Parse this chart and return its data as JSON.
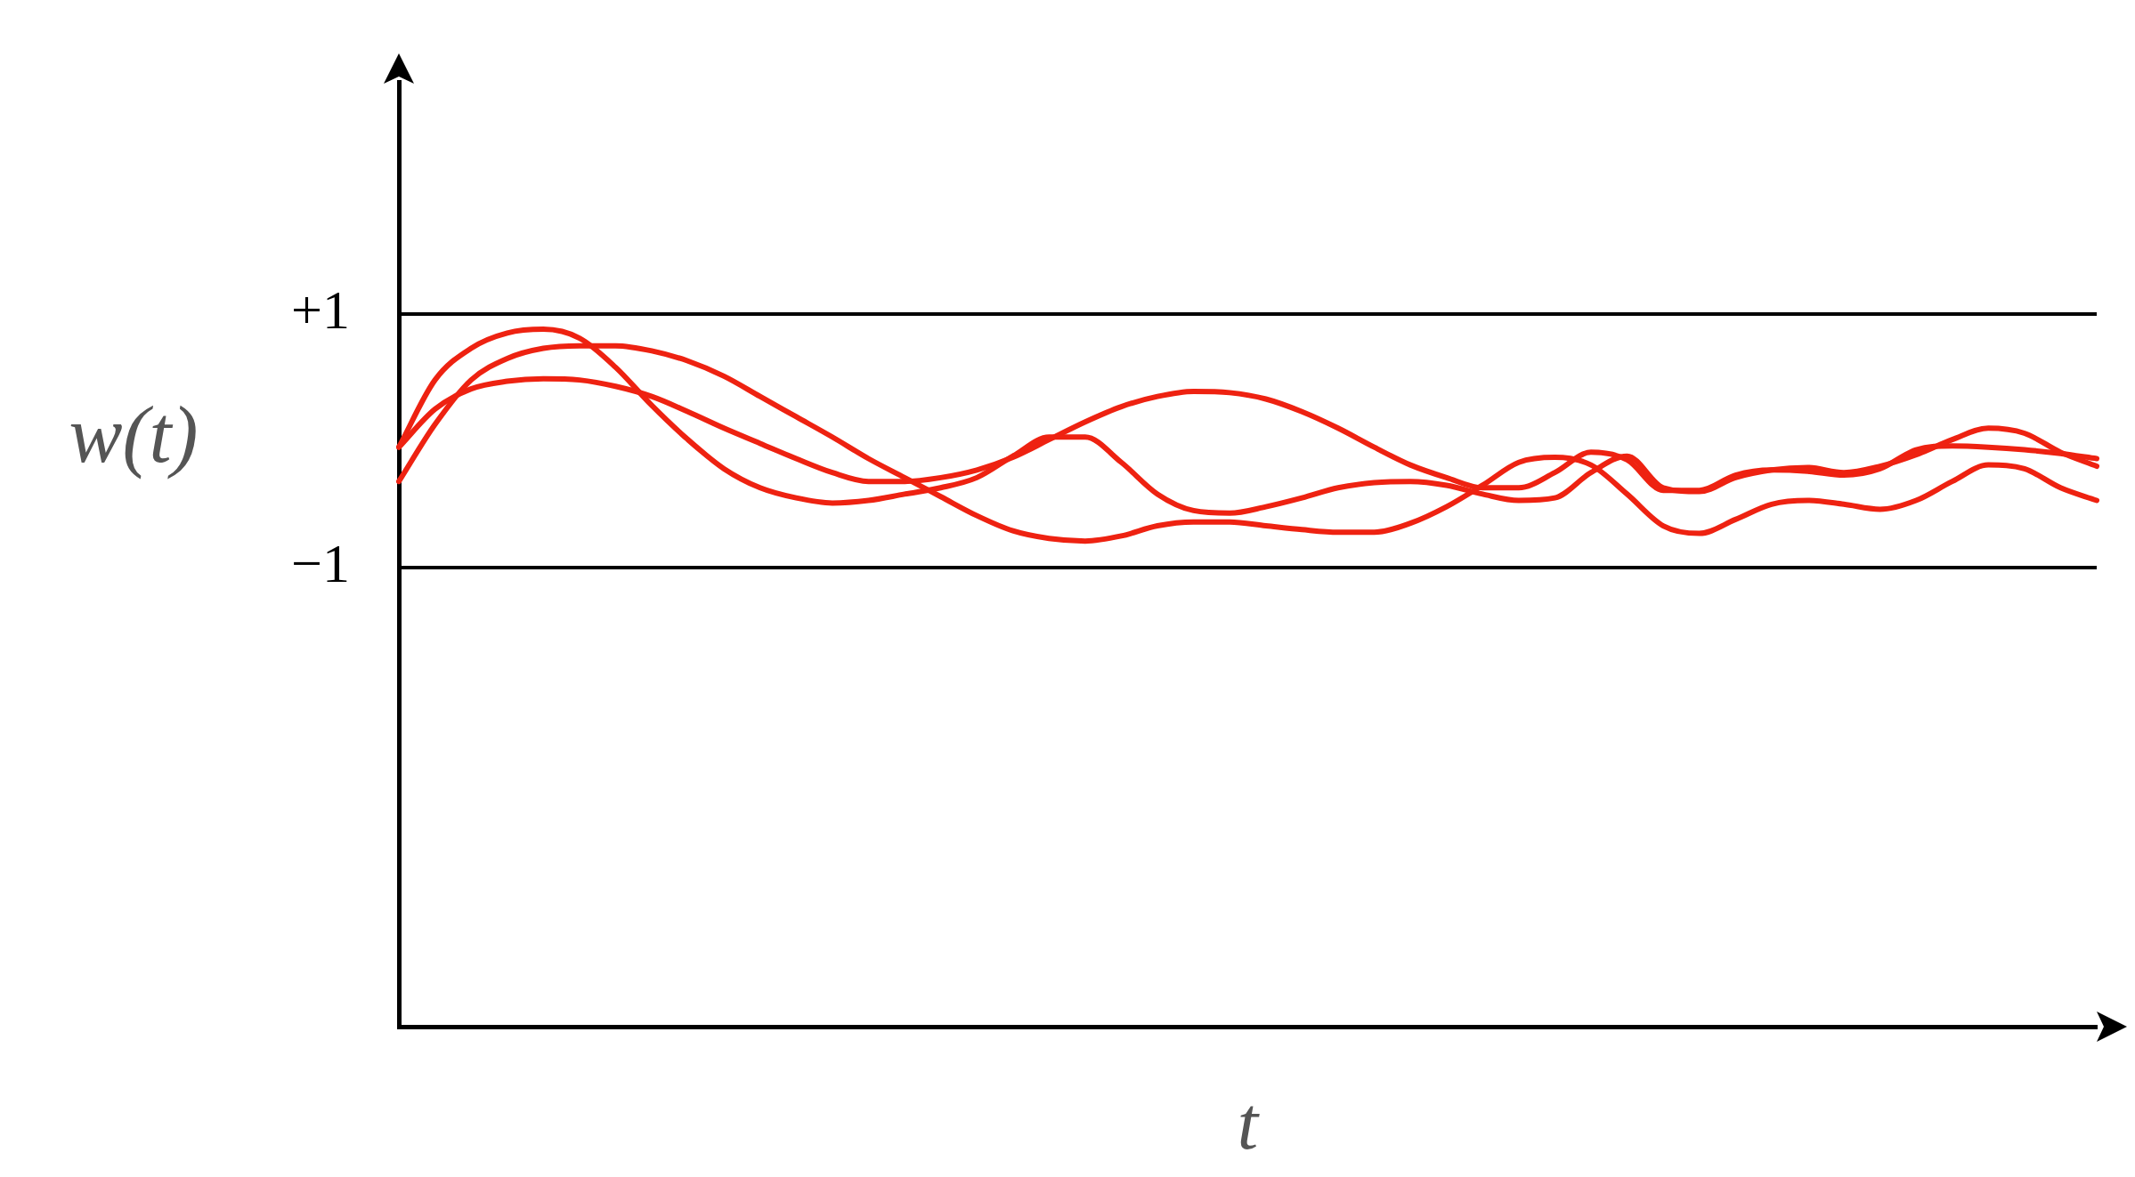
{
  "chart_data": {
    "type": "line",
    "xlabel": "t",
    "ylabel": "w(t)",
    "categories": [
      null,
      null,
      null,
      null,
      null,
      null,
      null,
      null,
      null,
      null,
      null,
      null,
      null,
      null,
      null,
      null,
      null,
      null,
      null,
      null,
      null,
      null,
      null,
      null,
      null,
      null,
      null,
      null,
      null,
      null,
      null,
      null,
      null,
      null,
      null,
      null,
      null,
      null,
      null,
      null,
      null,
      null,
      null,
      null,
      null,
      null,
      null,
      null
    ],
    "series": [
      {
        "color": "#ee2211",
        "values": [
          -0.05,
          0.48,
          0.73,
          0.85,
          0.88,
          0.81,
          0.58,
          0.28,
          0.01,
          -0.22,
          -0.37,
          -0.45,
          -0.49,
          -0.47,
          -0.42,
          -0.37,
          -0.29,
          -0.12,
          0.03,
          0.03,
          -0.17,
          -0.42,
          -0.55,
          -0.57,
          -0.52,
          -0.45,
          -0.37,
          -0.33,
          -0.32,
          -0.35,
          -0.42,
          -0.47,
          -0.45,
          -0.25,
          -0.12,
          -0.37,
          -0.4,
          -0.29,
          -0.23,
          -0.21,
          -0.25,
          -0.2,
          -0.11,
          0.01,
          0.1,
          0.06,
          -0.09,
          -0.2
        ]
      },
      {
        "color": "#ee2211",
        "values": [
          -0.32,
          0.13,
          0.48,
          0.65,
          0.73,
          0.75,
          0.75,
          0.71,
          0.63,
          0.51,
          0.35,
          0.19,
          0.03,
          -0.14,
          -0.29,
          -0.44,
          -0.59,
          -0.71,
          -0.77,
          -0.79,
          -0.75,
          -0.67,
          -0.64,
          -0.64,
          -0.67,
          -0.7,
          -0.72,
          -0.72,
          -0.65,
          -0.52,
          -0.35,
          -0.17,
          -0.13,
          -0.19,
          -0.42,
          -0.67,
          -0.73,
          -0.62,
          -0.5,
          -0.47,
          -0.5,
          -0.54,
          -0.47,
          -0.32,
          -0.19,
          -0.22,
          -0.37,
          -0.47
        ]
      },
      {
        "color": "#ee2211",
        "values": [
          -0.05,
          0.25,
          0.41,
          0.47,
          0.49,
          0.48,
          0.43,
          0.35,
          0.23,
          0.1,
          -0.02,
          -0.14,
          -0.25,
          -0.32,
          -0.32,
          -0.29,
          -0.23,
          -0.13,
          0.01,
          0.15,
          0.27,
          0.35,
          0.39,
          0.38,
          0.33,
          0.23,
          0.1,
          -0.05,
          -0.19,
          -0.29,
          -0.37,
          -0.37,
          -0.25,
          -0.09,
          -0.15,
          -0.39,
          -0.39,
          -0.27,
          -0.23,
          -0.24,
          -0.27,
          -0.22,
          -0.07,
          -0.04,
          -0.05,
          -0.07,
          -0.1,
          -0.14
        ]
      }
    ],
    "ylim": [
      -4.62,
      2.83
    ],
    "yticks": [
      {
        "value": 1,
        "label": "+1"
      },
      {
        "value": -1,
        "label": "−1"
      }
    ],
    "grid": "y",
    "tick_labels": "y",
    "marker": "none",
    "line_style": "solid"
  }
}
